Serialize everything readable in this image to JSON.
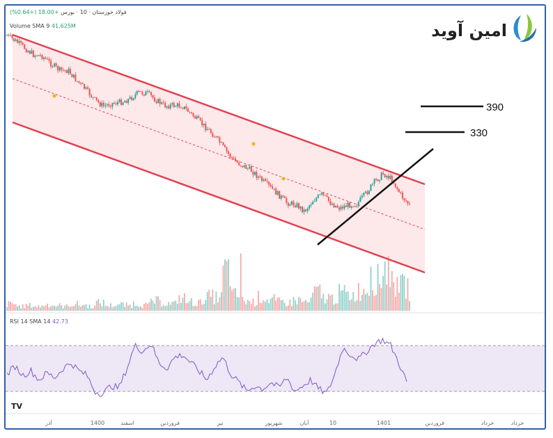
{
  "header": {
    "symbol": "فولاد خوزستان",
    "interval": "10",
    "exchange": "بورس",
    "change": "+18.00 (+0.64%)",
    "volume_label": "Volume SMA 9",
    "volume_value": "41.625M",
    "rsi_label": "RSI 14 SMA 14",
    "rsi_value": "42.73"
  },
  "brand": {
    "text": "امین آوید",
    "color": "#222222",
    "accent": "#2e8bd0"
  },
  "watermark": "TV",
  "colors": {
    "channel": "#e0404f",
    "fill": "#fde8ea",
    "up": "#26a69a",
    "down": "#ef5350",
    "rsi": "#7e57c2",
    "rsi_band": "#ede7f6",
    "trend": "#111111"
  },
  "chart_data": {
    "type": "candlestick",
    "annotations": [
      {
        "label": "390",
        "kind": "horizontal-level"
      },
      {
        "label": "330",
        "kind": "horizontal-level"
      }
    ],
    "x_ticks": [
      "آذر",
      "1400",
      "اسفند",
      "فروردین",
      "تیر",
      "شهریور",
      "آبان",
      "10",
      "1401",
      "فروردین",
      "خرداد",
      "خرداد"
    ],
    "price_path": [
      0.97,
      0.94,
      0.9,
      0.86,
      0.88,
      0.83,
      0.79,
      0.82,
      0.74,
      0.68,
      0.6,
      0.56,
      0.63,
      0.68,
      0.75,
      0.86,
      0.89,
      0.85,
      0.82,
      0.86,
      0.89,
      0.84,
      0.78,
      0.73,
      0.66,
      0.56,
      0.48,
      0.46,
      0.44,
      0.38,
      0.33,
      0.28,
      0.22,
      0.24,
      0.2,
      0.36,
      0.46,
      0.4,
      0.38,
      0.45,
      0.5,
      0.65,
      0.82,
      0.95,
      0.92,
      0.78,
      0.7
    ],
    "rsi_path": [
      45,
      52,
      44,
      48,
      40,
      46,
      42,
      50,
      55,
      48,
      44,
      30,
      28,
      35,
      33,
      50,
      70,
      65,
      72,
      55,
      50,
      60,
      62,
      55,
      48,
      40,
      52,
      60,
      45,
      38,
      30,
      35,
      32,
      38,
      33,
      42,
      30,
      35,
      40,
      32,
      28,
      45,
      68,
      62,
      58,
      65,
      72,
      75,
      70,
      55,
      38
    ],
    "volume_path": [
      0.15,
      0.1,
      0.12,
      0.1,
      0.14,
      0.12,
      0.1,
      0.15,
      0.13,
      0.1,
      0.18,
      0.12,
      0.14,
      0.12,
      0.16,
      0.13,
      0.22,
      0.18,
      0.16,
      0.28,
      0.2,
      0.18,
      0.32,
      0.3,
      0.9,
      0.35,
      0.22,
      0.2,
      0.3,
      0.25,
      0.2,
      0.18,
      0.24,
      0.2,
      0.42,
      0.3,
      0.28,
      0.4,
      0.35,
      0.45,
      0.5,
      0.7,
      1.0,
      0.6,
      0.55,
      0.4
    ]
  }
}
